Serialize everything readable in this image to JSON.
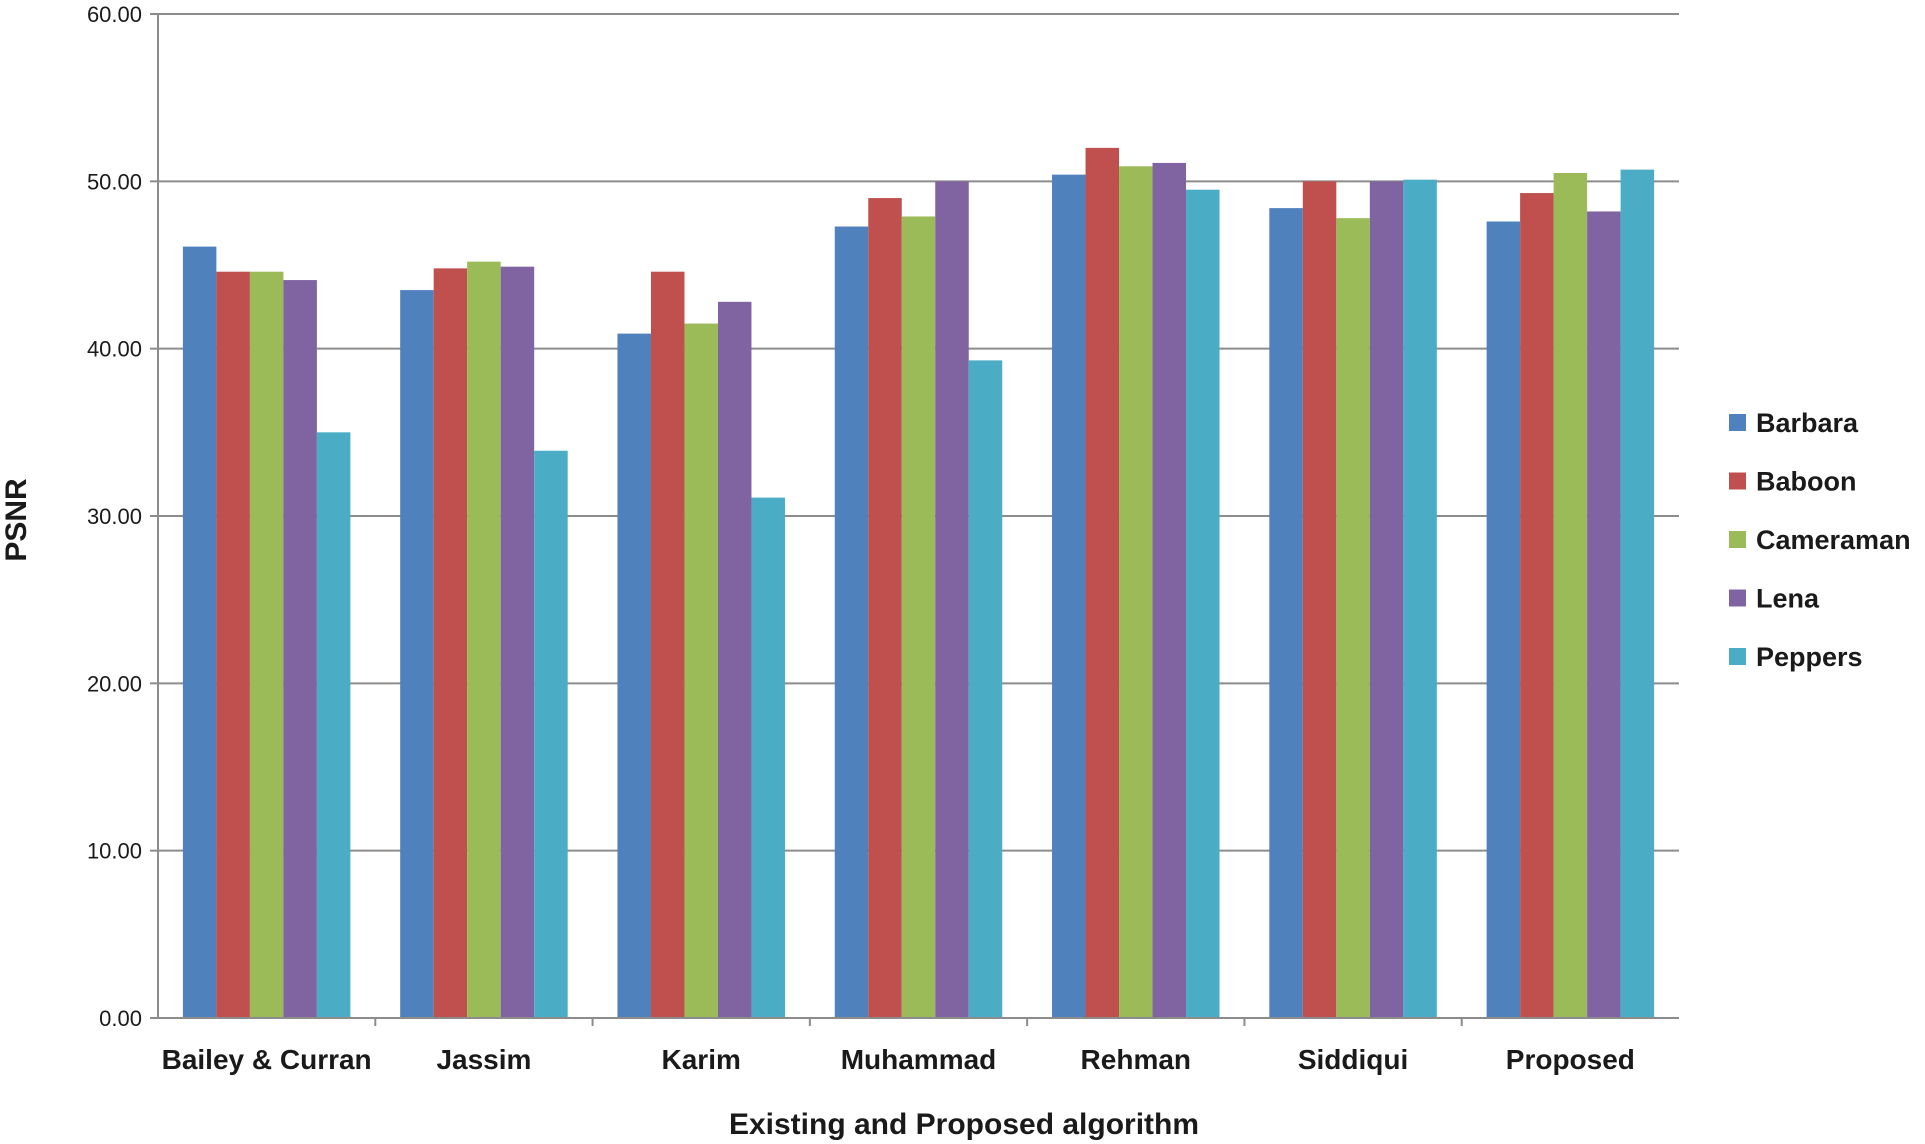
{
  "chart_data": {
    "type": "bar",
    "title": "",
    "xlabel": "Existing and Proposed algorithm",
    "ylabel": "PSNR",
    "ylim": [
      0,
      60
    ],
    "yticks": [
      "0.00",
      "10.00",
      "20.00",
      "30.00",
      "40.00",
      "50.00",
      "60.00"
    ],
    "grid": true,
    "legend_position": "right",
    "categories": [
      "Bailey & Curran",
      "Jassim",
      "Karim",
      "Muhammad",
      "Rehman",
      "Siddiqui",
      "Proposed"
    ],
    "series": [
      {
        "name": "Barbara",
        "color": "#4f81bd",
        "values": [
          46.1,
          43.5,
          40.9,
          47.3,
          50.4,
          48.4,
          47.6
        ]
      },
      {
        "name": "Baboon",
        "color": "#c0504d",
        "values": [
          44.6,
          44.8,
          44.6,
          49.0,
          52.0,
          50.0,
          49.3
        ]
      },
      {
        "name": "Cameraman",
        "color": "#9bbb59",
        "values": [
          44.6,
          45.2,
          41.5,
          47.9,
          50.9,
          47.8,
          50.5
        ]
      },
      {
        "name": "Lena",
        "color": "#8064a2",
        "values": [
          44.1,
          44.9,
          42.8,
          50.0,
          51.1,
          50.0,
          48.2
        ]
      },
      {
        "name": "Peppers",
        "color": "#4bacc6",
        "values": [
          35.0,
          33.9,
          31.1,
          39.3,
          49.5,
          50.1,
          50.7
        ]
      }
    ]
  }
}
